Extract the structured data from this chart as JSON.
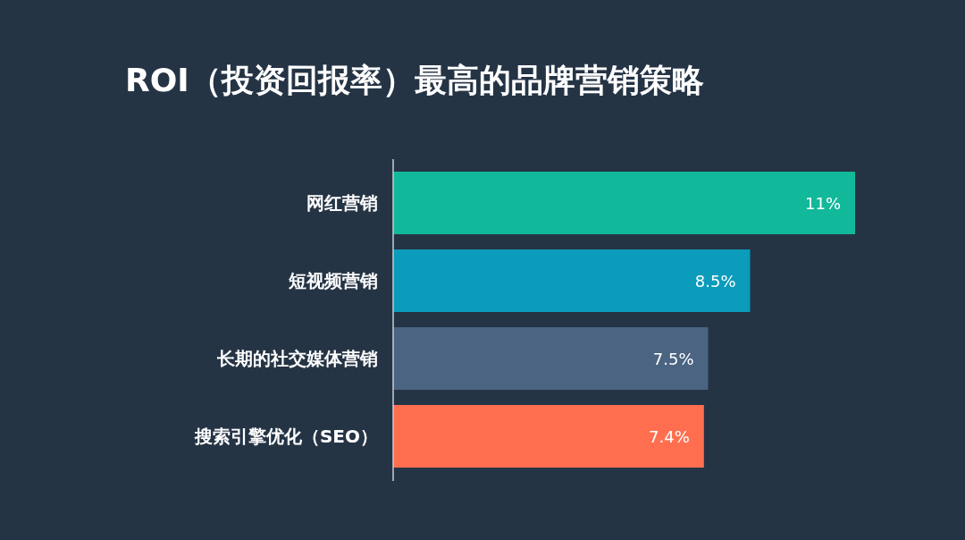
{
  "chart_data": {
    "type": "bar",
    "orientation": "horizontal",
    "title": "ROI（投资回报率）最高的品牌营销策略",
    "categories": [
      "网红营销",
      "短视频营销",
      "长期的社交媒体营销",
      "搜索引擎优化（SEO）"
    ],
    "values": [
      11,
      8.5,
      7.5,
      7.4
    ],
    "colors": [
      "#12b89a",
      "#0b9bbb",
      "#4a6482",
      "#ff6f4f"
    ],
    "value_labels": [
      "11%",
      "8.5%",
      "7.5%",
      "7.4%"
    ]
  }
}
